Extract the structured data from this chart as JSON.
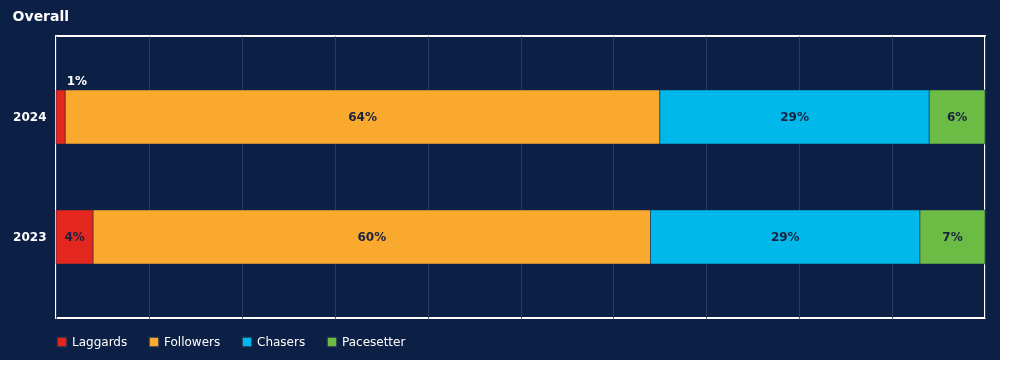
{
  "chart_data": {
    "type": "bar",
    "title": "Overall",
    "orientation": "horizontal",
    "stacked": true,
    "categories": [
      "2024",
      "2023"
    ],
    "series": [
      {
        "name": "Laggards",
        "color": "#e3261e",
        "values": [
          1,
          4
        ],
        "value_labels": [
          "1%",
          "4%"
        ]
      },
      {
        "name": "Followers",
        "color": "#f9a92d",
        "values": [
          64,
          60
        ],
        "value_labels": [
          "64%",
          "60%"
        ]
      },
      {
        "name": "Chasers",
        "color": "#00b8ea",
        "values": [
          29,
          29
        ],
        "value_labels": [
          "29%",
          "29%"
        ]
      },
      {
        "name": "Pacesetter",
        "color": "#6cbb45",
        "values": [
          6,
          7
        ],
        "value_labels": [
          "6%",
          "7%"
        ]
      }
    ],
    "xlim": [
      0,
      100
    ],
    "xticks": [
      {
        "value": 0,
        "label": null
      },
      {
        "value": 10,
        "label": null
      },
      {
        "value": 20,
        "label": null
      },
      {
        "value": 30,
        "label": null
      },
      {
        "value": 40,
        "label": null
      },
      {
        "value": 50,
        "label": null
      },
      {
        "value": 60,
        "label": null
      },
      {
        "value": 70,
        "label": null
      },
      {
        "value": 80,
        "label": null
      },
      {
        "value": 90,
        "label": null
      },
      {
        "value": 100,
        "label": null
      }
    ],
    "grid": "x",
    "legend": "bottom",
    "tick_labels": "y"
  }
}
